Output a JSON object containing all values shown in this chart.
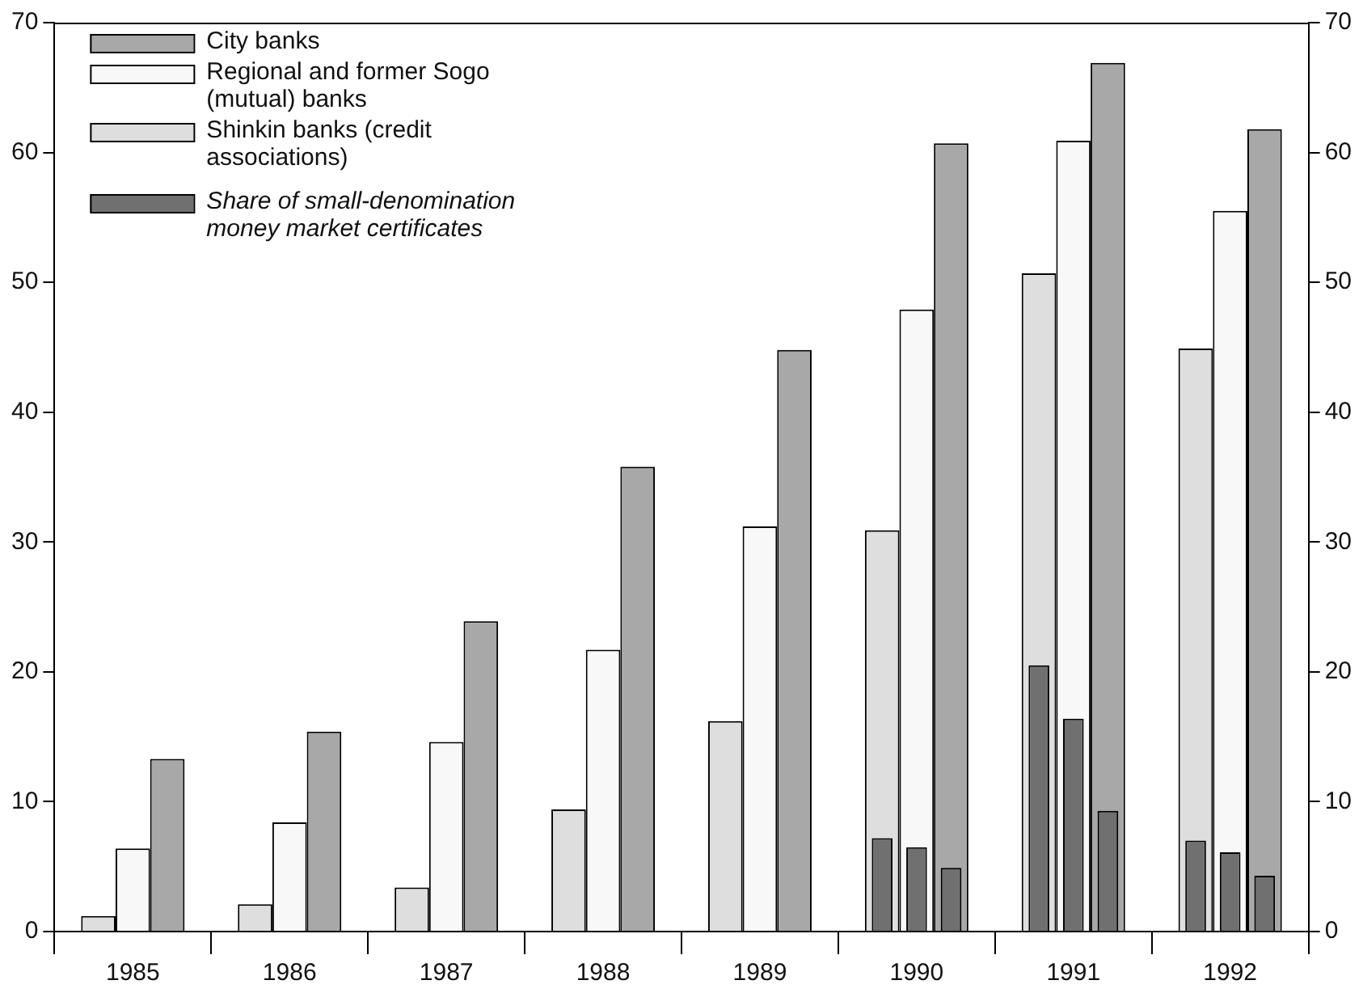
{
  "chart_data": {
    "type": "bar",
    "categories": [
      "1985",
      "1986",
      "1987",
      "1988",
      "1989",
      "1990",
      "1991",
      "1992"
    ],
    "series": [
      {
        "name": "Shinkin banks (credit associations)",
        "color": "#dedede",
        "values": [
          1.2,
          2.1,
          3.4,
          9.4,
          16.2,
          30.9,
          50.7,
          44.9
        ]
      },
      {
        "name": "Regional and former Sogo (mutual) banks",
        "color": "#f8f8f8",
        "values": [
          6.4,
          8.4,
          14.6,
          21.7,
          31.2,
          47.9,
          60.9,
          55.5
        ]
      },
      {
        "name": "City banks",
        "color": "#a8a8a8",
        "values": [
          13.3,
          15.4,
          23.9,
          35.8,
          44.8,
          60.7,
          66.9,
          61.8
        ]
      },
      {
        "name": "Share of small-denomination money market certificates",
        "color": "#707070",
        "values": [
          null,
          null,
          null,
          null,
          null,
          7.2,
          20.5,
          7.0
        ]
      },
      {
        "color": "#707070",
        "values": [
          null,
          null,
          null,
          null,
          null,
          6.5,
          16.4,
          6.1
        ]
      },
      {
        "color": "#707070",
        "values": [
          null,
          null,
          null,
          null,
          null,
          4.9,
          9.3,
          4.3
        ]
      }
    ],
    "ylim": [
      0,
      70
    ],
    "yticks": [
      0,
      10,
      20,
      30,
      40,
      50,
      60,
      70
    ],
    "y2lim": [
      0,
      70
    ],
    "y2ticks": [
      0,
      10,
      20,
      30,
      40,
      50,
      60,
      70
    ],
    "grid": false,
    "legend": "top left"
  }
}
